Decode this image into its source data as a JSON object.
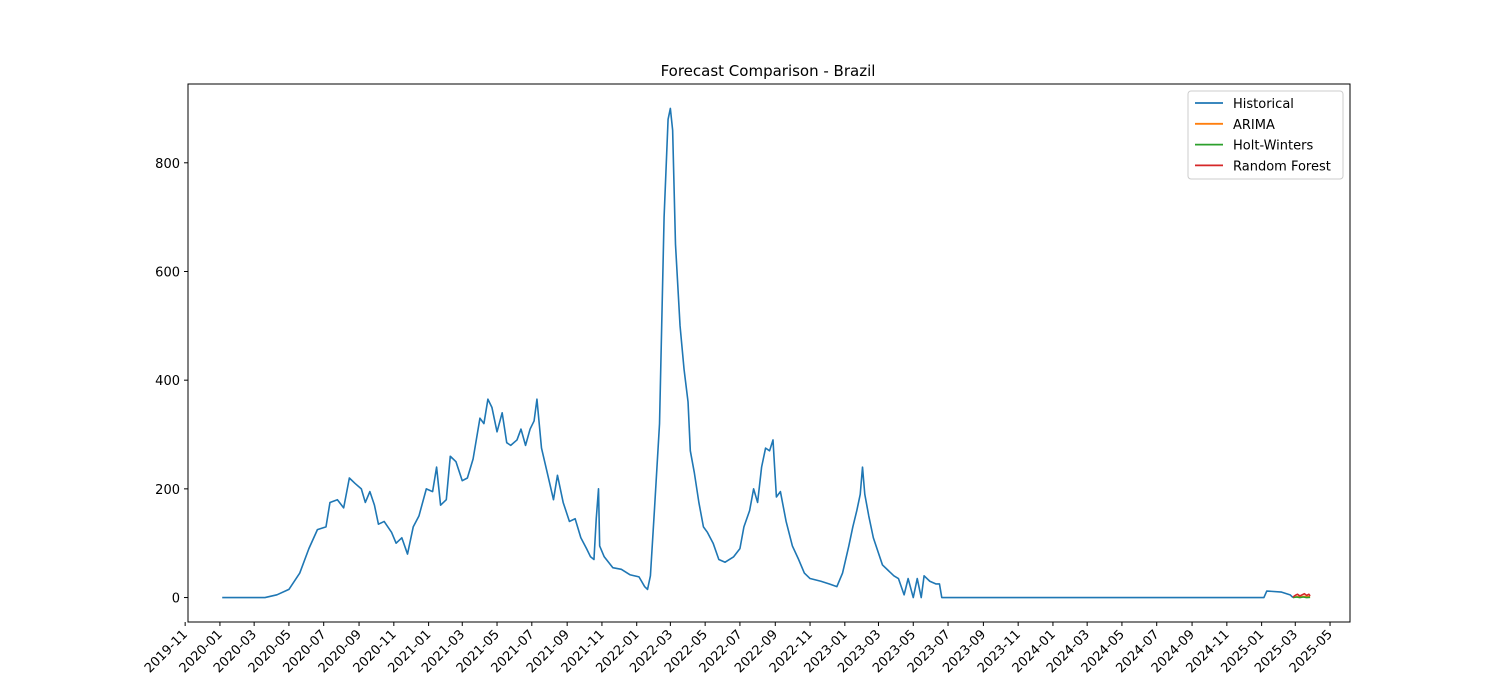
{
  "chart_data": {
    "type": "line",
    "title": "Forecast Comparison - Brazil",
    "xlabel": "",
    "ylabel": "",
    "x_type": "date",
    "xlim": [
      "2019-11-06",
      "2025-06-05"
    ],
    "ylim": [
      -45,
      945
    ],
    "x_ticks": [
      "2019-11",
      "2020-01",
      "2020-03",
      "2020-05",
      "2020-07",
      "2020-09",
      "2020-11",
      "2021-01",
      "2021-03",
      "2021-05",
      "2021-07",
      "2021-09",
      "2021-11",
      "2022-01",
      "2022-03",
      "2022-05",
      "2022-07",
      "2022-09",
      "2022-11",
      "2023-01",
      "2023-03",
      "2023-05",
      "2023-07",
      "2023-09",
      "2023-11",
      "2024-01",
      "2024-03",
      "2024-05",
      "2024-07",
      "2024-09",
      "2024-11",
      "2025-01",
      "2025-03",
      "2025-05"
    ],
    "y_ticks": [
      0,
      200,
      400,
      600,
      800
    ],
    "grid": false,
    "legend_position": "upper right",
    "series": [
      {
        "name": "Historical",
        "color": "#1f77b4",
        "points": [
          [
            "2020-01-05",
            0
          ],
          [
            "2020-03-20",
            0
          ],
          [
            "2020-04-10",
            5
          ],
          [
            "2020-05-01",
            15
          ],
          [
            "2020-05-20",
            45
          ],
          [
            "2020-06-05",
            90
          ],
          [
            "2020-06-20",
            125
          ],
          [
            "2020-07-05",
            130
          ],
          [
            "2020-07-12",
            175
          ],
          [
            "2020-07-25",
            180
          ],
          [
            "2020-08-05",
            165
          ],
          [
            "2020-08-15",
            220
          ],
          [
            "2020-08-25",
            210
          ],
          [
            "2020-09-05",
            200
          ],
          [
            "2020-09-12",
            175
          ],
          [
            "2020-09-20",
            195
          ],
          [
            "2020-09-28",
            170
          ],
          [
            "2020-10-05",
            135
          ],
          [
            "2020-10-15",
            140
          ],
          [
            "2020-10-28",
            120
          ],
          [
            "2020-11-05",
            100
          ],
          [
            "2020-11-15",
            110
          ],
          [
            "2020-11-25",
            80
          ],
          [
            "2020-12-05",
            130
          ],
          [
            "2020-12-15",
            150
          ],
          [
            "2020-12-28",
            200
          ],
          [
            "2021-01-08",
            195
          ],
          [
            "2021-01-15",
            240
          ],
          [
            "2021-01-22",
            170
          ],
          [
            "2021-02-01",
            180
          ],
          [
            "2021-02-08",
            260
          ],
          [
            "2021-02-18",
            250
          ],
          [
            "2021-03-01",
            215
          ],
          [
            "2021-03-10",
            220
          ],
          [
            "2021-03-20",
            255
          ],
          [
            "2021-04-01",
            330
          ],
          [
            "2021-04-08",
            320
          ],
          [
            "2021-04-15",
            365
          ],
          [
            "2021-04-22",
            350
          ],
          [
            "2021-05-01",
            305
          ],
          [
            "2021-05-10",
            340
          ],
          [
            "2021-05-18",
            285
          ],
          [
            "2021-05-25",
            280
          ],
          [
            "2021-06-05",
            290
          ],
          [
            "2021-06-12",
            310
          ],
          [
            "2021-06-20",
            280
          ],
          [
            "2021-06-28",
            310
          ],
          [
            "2021-07-05",
            325
          ],
          [
            "2021-07-10",
            365
          ],
          [
            "2021-07-18",
            275
          ],
          [
            "2021-07-28",
            230
          ],
          [
            "2021-08-08",
            180
          ],
          [
            "2021-08-15",
            225
          ],
          [
            "2021-08-25",
            175
          ],
          [
            "2021-09-05",
            140
          ],
          [
            "2021-09-15",
            145
          ],
          [
            "2021-09-25",
            110
          ],
          [
            "2021-10-05",
            90
          ],
          [
            "2021-10-12",
            75
          ],
          [
            "2021-10-18",
            70
          ],
          [
            "2021-10-22",
            145
          ],
          [
            "2021-10-26",
            200
          ],
          [
            "2021-10-28",
            95
          ],
          [
            "2021-11-05",
            75
          ],
          [
            "2021-11-20",
            55
          ],
          [
            "2021-12-05",
            52
          ],
          [
            "2021-12-20",
            42
          ],
          [
            "2022-01-05",
            38
          ],
          [
            "2022-01-15",
            20
          ],
          [
            "2022-01-20",
            15
          ],
          [
            "2022-01-25",
            40
          ],
          [
            "2022-02-01",
            160
          ],
          [
            "2022-02-10",
            320
          ],
          [
            "2022-02-18",
            700
          ],
          [
            "2022-02-25",
            880
          ],
          [
            "2022-03-01",
            900
          ],
          [
            "2022-03-05",
            860
          ],
          [
            "2022-03-10",
            650
          ],
          [
            "2022-03-18",
            500
          ],
          [
            "2022-03-25",
            420
          ],
          [
            "2022-04-01",
            360
          ],
          [
            "2022-04-05",
            270
          ],
          [
            "2022-04-12",
            230
          ],
          [
            "2022-04-20",
            175
          ],
          [
            "2022-04-28",
            130
          ],
          [
            "2022-05-05",
            120
          ],
          [
            "2022-05-15",
            100
          ],
          [
            "2022-05-25",
            70
          ],
          [
            "2022-06-05",
            65
          ],
          [
            "2022-06-20",
            75
          ],
          [
            "2022-07-01",
            90
          ],
          [
            "2022-07-08",
            130
          ],
          [
            "2022-07-18",
            160
          ],
          [
            "2022-07-25",
            200
          ],
          [
            "2022-08-01",
            175
          ],
          [
            "2022-08-08",
            240
          ],
          [
            "2022-08-15",
            275
          ],
          [
            "2022-08-22",
            270
          ],
          [
            "2022-08-28",
            290
          ],
          [
            "2022-09-03",
            185
          ],
          [
            "2022-09-10",
            195
          ],
          [
            "2022-09-20",
            140
          ],
          [
            "2022-10-01",
            95
          ],
          [
            "2022-10-12",
            70
          ],
          [
            "2022-10-22",
            45
          ],
          [
            "2022-11-01",
            35
          ],
          [
            "2022-11-20",
            30
          ],
          [
            "2022-12-05",
            25
          ],
          [
            "2022-12-18",
            20
          ],
          [
            "2022-12-28",
            45
          ],
          [
            "2023-01-08",
            95
          ],
          [
            "2023-01-15",
            130
          ],
          [
            "2023-01-22",
            160
          ],
          [
            "2023-01-28",
            190
          ],
          [
            "2023-02-01",
            240
          ],
          [
            "2023-02-05",
            190
          ],
          [
            "2023-02-12",
            150
          ],
          [
            "2023-02-20",
            110
          ],
          [
            "2023-02-28",
            85
          ],
          [
            "2023-03-08",
            60
          ],
          [
            "2023-03-18",
            50
          ],
          [
            "2023-03-28",
            40
          ],
          [
            "2023-04-05",
            35
          ],
          [
            "2023-04-15",
            5
          ],
          [
            "2023-04-22",
            35
          ],
          [
            "2023-05-01",
            0
          ],
          [
            "2023-05-08",
            35
          ],
          [
            "2023-05-15",
            0
          ],
          [
            "2023-05-20",
            40
          ],
          [
            "2023-05-30",
            30
          ],
          [
            "2023-06-10",
            25
          ],
          [
            "2023-06-16",
            25
          ],
          [
            "2023-06-20",
            0
          ],
          [
            "2025-01-05",
            0
          ],
          [
            "2025-01-10",
            12
          ],
          [
            "2025-02-05",
            10
          ],
          [
            "2025-02-20",
            5
          ],
          [
            "2025-02-25",
            0
          ]
        ]
      },
      {
        "name": "ARIMA",
        "color": "#ff7f0e",
        "points": [
          [
            "2025-02-25",
            0.5
          ],
          [
            "2025-03-02",
            1
          ],
          [
            "2025-03-07",
            2
          ],
          [
            "2025-03-12",
            1.5
          ],
          [
            "2025-03-17",
            2
          ],
          [
            "2025-03-22",
            1.5
          ],
          [
            "2025-03-27",
            2
          ]
        ]
      },
      {
        "name": "Holt-Winters",
        "color": "#2ca02c",
        "points": [
          [
            "2025-02-25",
            0
          ],
          [
            "2025-03-03",
            1
          ],
          [
            "2025-03-09",
            0
          ],
          [
            "2025-03-15",
            1
          ],
          [
            "2025-03-21",
            0
          ],
          [
            "2025-03-27",
            0.5
          ]
        ]
      },
      {
        "name": "Random Forest",
        "color": "#d62728",
        "points": [
          [
            "2025-02-25",
            1
          ],
          [
            "2025-03-01",
            4
          ],
          [
            "2025-03-05",
            6
          ],
          [
            "2025-03-09",
            3
          ],
          [
            "2025-03-13",
            5
          ],
          [
            "2025-03-17",
            7
          ],
          [
            "2025-03-21",
            4
          ],
          [
            "2025-03-25",
            6
          ],
          [
            "2025-03-27",
            3
          ]
        ]
      }
    ]
  }
}
